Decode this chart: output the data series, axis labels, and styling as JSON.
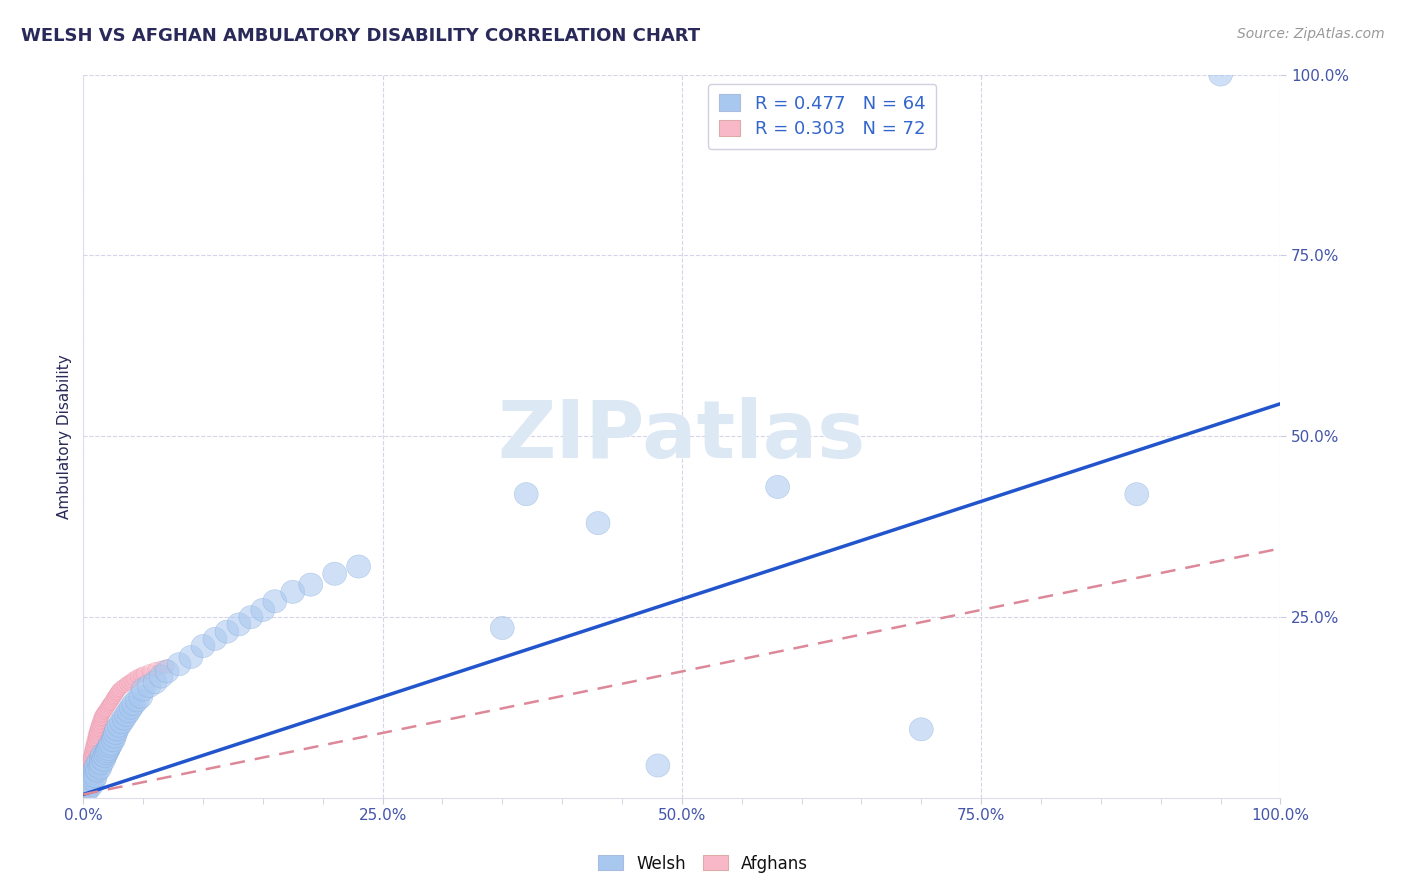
{
  "title": "WELSH VS AFGHAN AMBULATORY DISABILITY CORRELATION CHART",
  "source_text": "Source: ZipAtlas.com",
  "ylabel": "Ambulatory Disability",
  "xlim": [
    0,
    1.0
  ],
  "ylim": [
    0,
    1.0
  ],
  "xtick_labels": [
    "0.0%",
    "",
    "",
    "",
    "",
    "25.0%",
    "",
    "",
    "",
    "",
    "50.0%",
    "",
    "",
    "",
    "",
    "75.0%",
    "",
    "",
    "",
    "",
    "100.0%"
  ],
  "xtick_positions": [
    0.0,
    0.05,
    0.1,
    0.15,
    0.2,
    0.25,
    0.3,
    0.35,
    0.4,
    0.45,
    0.5,
    0.55,
    0.6,
    0.65,
    0.7,
    0.75,
    0.8,
    0.85,
    0.9,
    0.95,
    1.0
  ],
  "ytick_labels": [
    "25.0%",
    "50.0%",
    "75.0%",
    "100.0%"
  ],
  "ytick_positions": [
    0.25,
    0.5,
    0.75,
    1.0
  ],
  "welsh_R": 0.477,
  "welsh_N": 64,
  "afghan_R": 0.303,
  "afghan_N": 72,
  "welsh_color": "#a8c8f0",
  "afghan_color": "#f8b8c8",
  "welsh_edge_color": "#82a8d8",
  "afghan_edge_color": "#e890a8",
  "welsh_line_color": "#2255cc",
  "afghan_line_color": "#dd8899",
  "title_color": "#2a2a5a",
  "axis_label_color": "#2a2a5a",
  "tick_color": "#4455aa",
  "legend_text_color": "#3366cc",
  "watermark_color": "#dde8f5",
  "background_color": "#ffffff",
  "grid_color": "#d0d0e8",
  "welsh_line_x": [
    0.0,
    1.0
  ],
  "welsh_line_y": [
    0.005,
    0.545
  ],
  "afghan_line_x": [
    0.0,
    1.0
  ],
  "afghan_line_y": [
    0.005,
    0.345
  ],
  "welsh_scatter_x": [
    0.003,
    0.004,
    0.005,
    0.005,
    0.006,
    0.007,
    0.007,
    0.008,
    0.009,
    0.01,
    0.01,
    0.011,
    0.012,
    0.013,
    0.014,
    0.015,
    0.015,
    0.016,
    0.017,
    0.018,
    0.019,
    0.02,
    0.021,
    0.022,
    0.023,
    0.025,
    0.026,
    0.027,
    0.028,
    0.03,
    0.032,
    0.034,
    0.036,
    0.038,
    0.04,
    0.042,
    0.045,
    0.048,
    0.05,
    0.055,
    0.06,
    0.065,
    0.07,
    0.08,
    0.09,
    0.1,
    0.11,
    0.12,
    0.13,
    0.14,
    0.15,
    0.16,
    0.175,
    0.19,
    0.21,
    0.23,
    0.35,
    0.37,
    0.43,
    0.48,
    0.58,
    0.7,
    0.88,
    0.95
  ],
  "welsh_scatter_y": [
    0.01,
    0.02,
    0.015,
    0.025,
    0.02,
    0.03,
    0.018,
    0.035,
    0.025,
    0.04,
    0.03,
    0.045,
    0.038,
    0.05,
    0.042,
    0.055,
    0.048,
    0.06,
    0.053,
    0.058,
    0.062,
    0.065,
    0.068,
    0.072,
    0.075,
    0.08,
    0.085,
    0.09,
    0.095,
    0.1,
    0.105,
    0.11,
    0.115,
    0.12,
    0.125,
    0.13,
    0.135,
    0.14,
    0.15,
    0.155,
    0.16,
    0.168,
    0.175,
    0.185,
    0.195,
    0.21,
    0.22,
    0.23,
    0.24,
    0.25,
    0.26,
    0.272,
    0.285,
    0.295,
    0.31,
    0.32,
    0.235,
    0.42,
    0.38,
    0.045,
    0.43,
    0.095,
    0.42,
    1.0
  ],
  "afghan_scatter_x": [
    0.001,
    0.001,
    0.001,
    0.002,
    0.002,
    0.002,
    0.002,
    0.003,
    0.003,
    0.003,
    0.003,
    0.004,
    0.004,
    0.004,
    0.004,
    0.005,
    0.005,
    0.005,
    0.005,
    0.006,
    0.006,
    0.006,
    0.007,
    0.007,
    0.007,
    0.008,
    0.008,
    0.008,
    0.009,
    0.009,
    0.009,
    0.01,
    0.01,
    0.01,
    0.011,
    0.011,
    0.012,
    0.012,
    0.013,
    0.013,
    0.014,
    0.014,
    0.015,
    0.015,
    0.016,
    0.017,
    0.018,
    0.019,
    0.02,
    0.021,
    0.022,
    0.023,
    0.024,
    0.025,
    0.026,
    0.027,
    0.028,
    0.029,
    0.03,
    0.032,
    0.034,
    0.036,
    0.038,
    0.04,
    0.042,
    0.045,
    0.048,
    0.05,
    0.055,
    0.06,
    0.065,
    0.07
  ],
  "afghan_scatter_y": [
    0.005,
    0.008,
    0.012,
    0.01,
    0.015,
    0.018,
    0.022,
    0.02,
    0.025,
    0.028,
    0.032,
    0.03,
    0.035,
    0.038,
    0.042,
    0.04,
    0.045,
    0.048,
    0.052,
    0.05,
    0.055,
    0.058,
    0.06,
    0.063,
    0.066,
    0.068,
    0.07,
    0.073,
    0.075,
    0.078,
    0.08,
    0.082,
    0.085,
    0.088,
    0.09,
    0.093,
    0.095,
    0.098,
    0.1,
    0.103,
    0.105,
    0.108,
    0.11,
    0.113,
    0.115,
    0.118,
    0.12,
    0.122,
    0.125,
    0.128,
    0.13,
    0.132,
    0.135,
    0.138,
    0.14,
    0.143,
    0.145,
    0.148,
    0.15,
    0.153,
    0.155,
    0.158,
    0.16,
    0.162,
    0.165,
    0.168,
    0.17,
    0.172,
    0.175,
    0.178,
    0.18,
    0.182
  ]
}
